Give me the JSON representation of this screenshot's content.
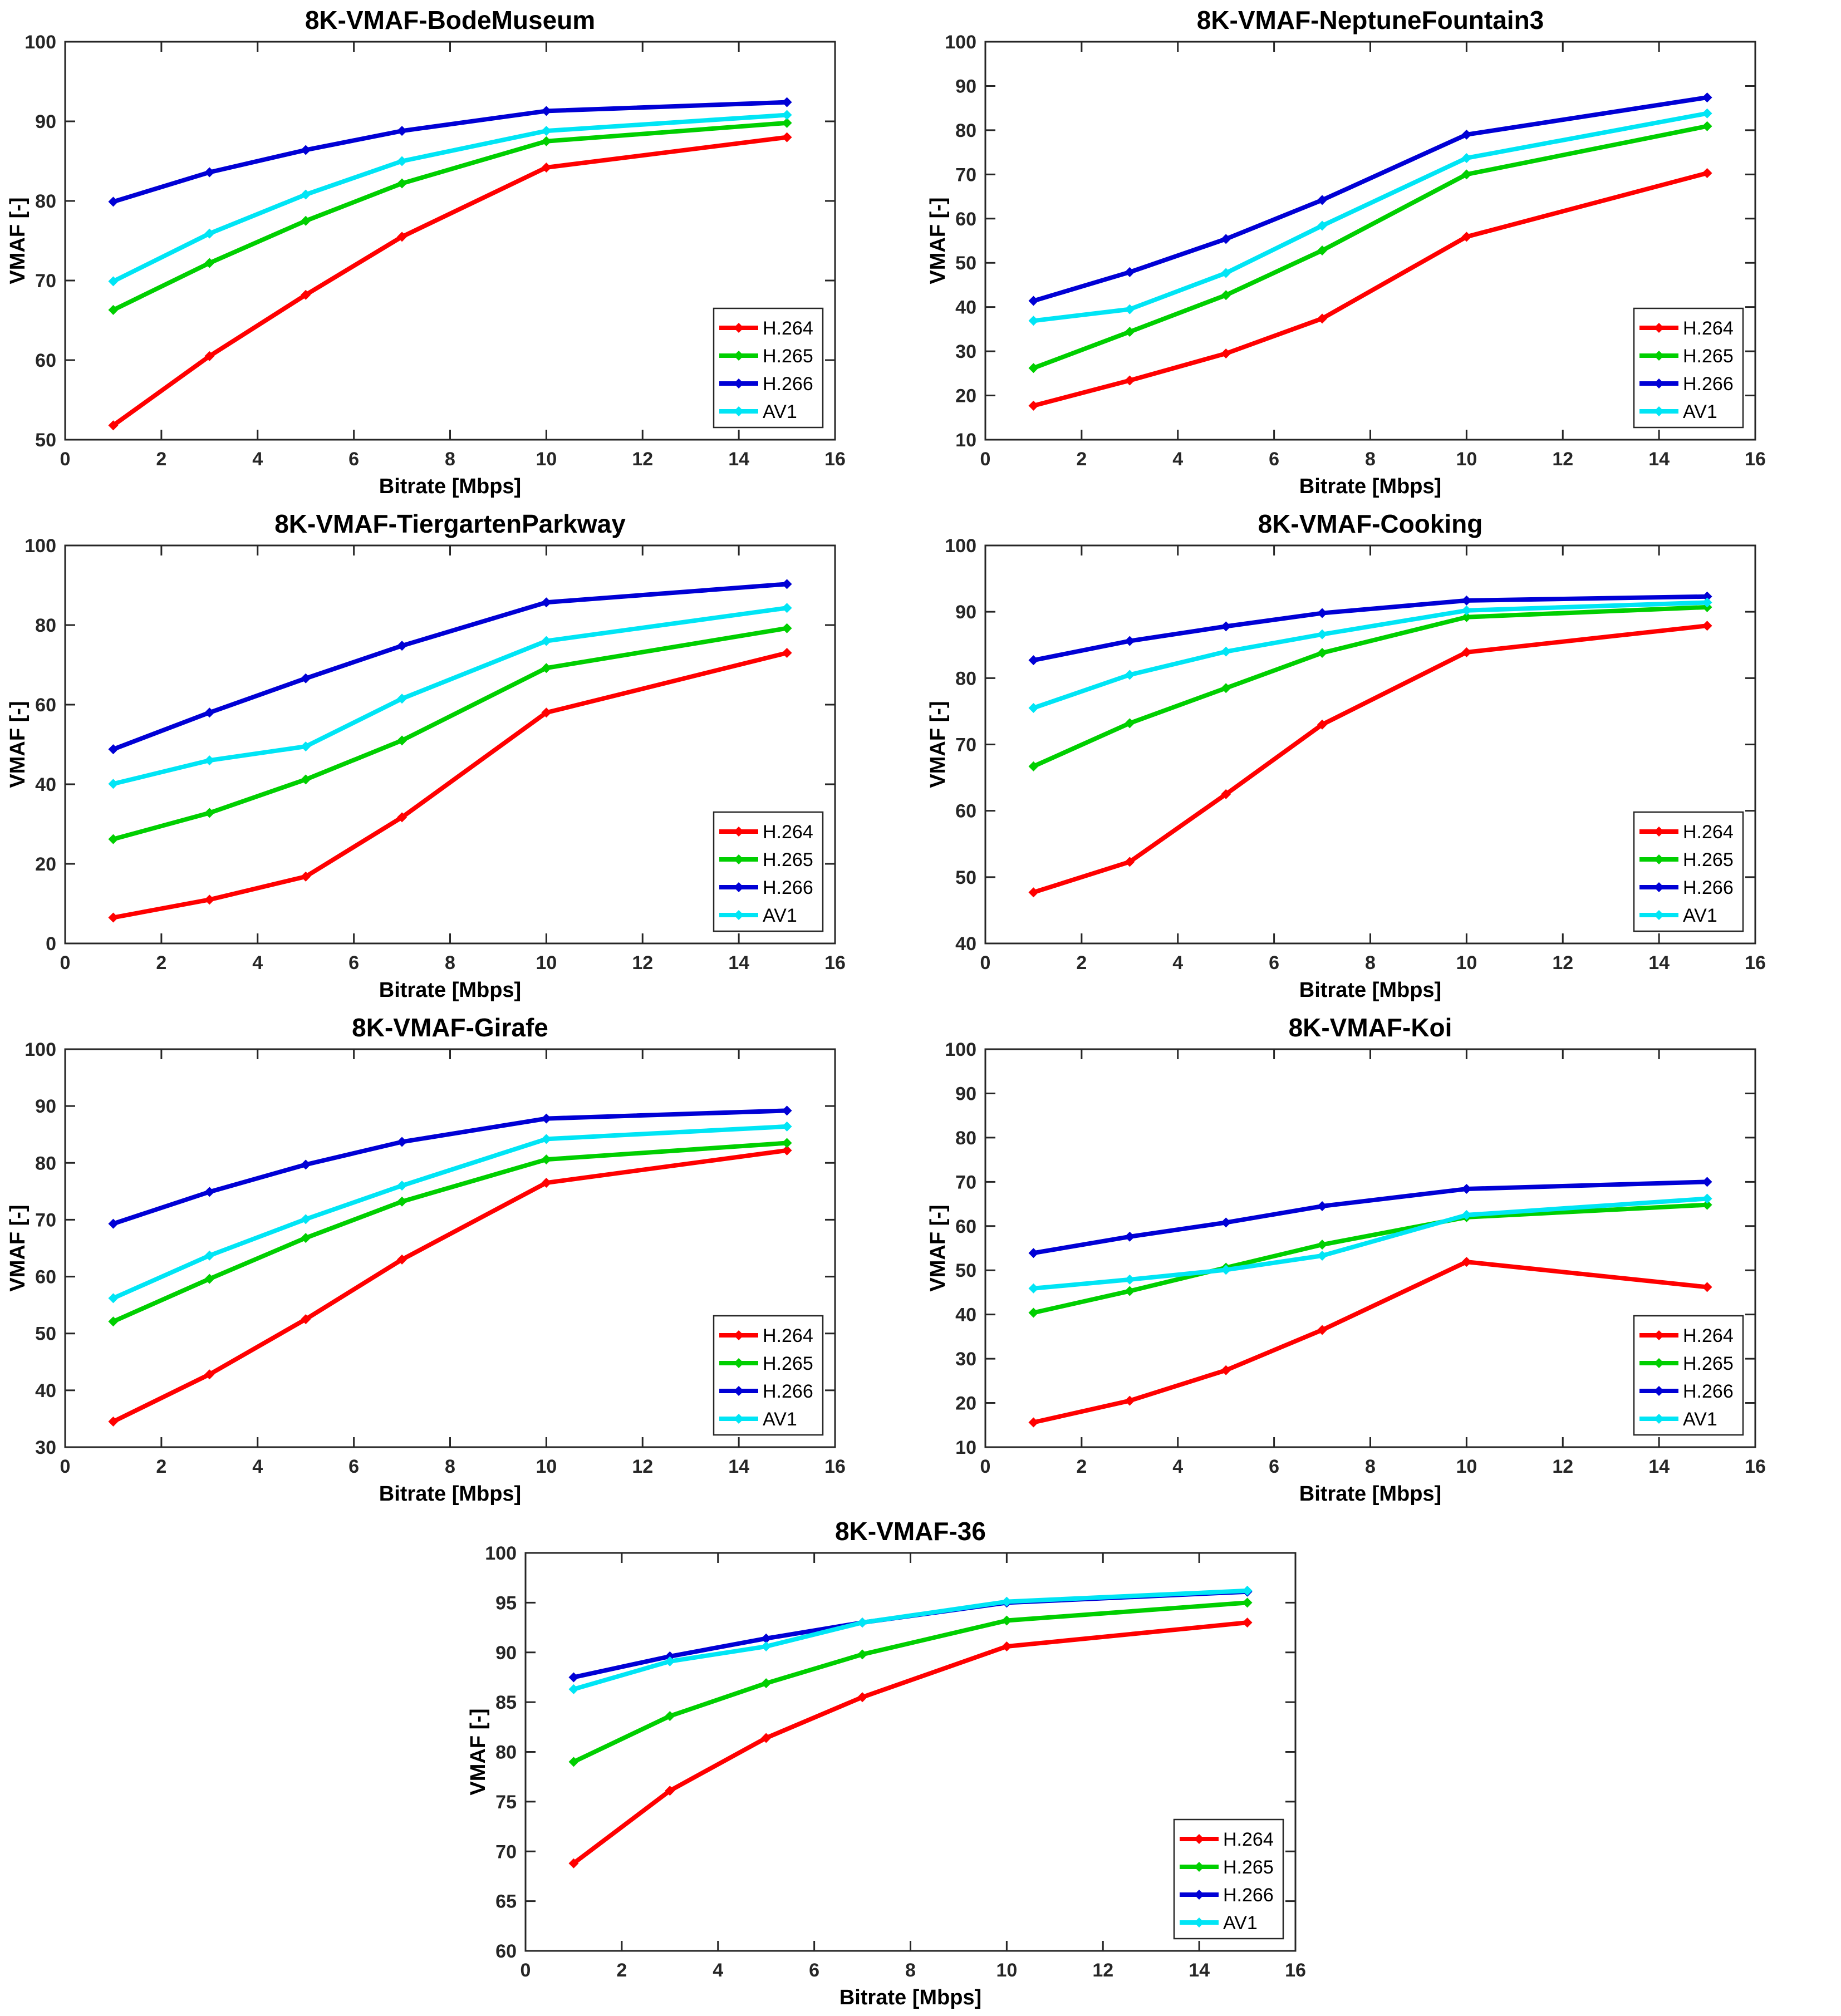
{
  "figure": {
    "background": "#ffffff",
    "series_colors": {
      "H.264": "#ff0000",
      "H.265": "#00cf00",
      "H.266": "#0000d5",
      "AV1": "#00e5f5"
    },
    "axis_text_color": "#262626",
    "label_text_color": "#000000"
  },
  "chart_data": [
    {
      "type": "line",
      "title": "8K-VMAF-BodeMuseum",
      "xlabel": "Bitrate [Mbps]",
      "ylabel": "VMAF [-]",
      "grid": false,
      "legend_position": "southeast",
      "xlim": [
        0,
        16
      ],
      "ylim": [
        50,
        100
      ],
      "xticks": [
        0,
        2,
        4,
        6,
        8,
        10,
        12,
        14,
        16
      ],
      "yticks": [
        50,
        60,
        70,
        80,
        90,
        100
      ],
      "x": [
        1,
        3,
        5,
        7,
        10,
        15
      ],
      "series": [
        {
          "name": "H.264",
          "color": "#ff0000",
          "values": [
            51.8,
            60.5,
            68.2,
            75.5,
            84.2,
            88.0
          ]
        },
        {
          "name": "H.265",
          "color": "#00cf00",
          "values": [
            66.3,
            72.2,
            77.5,
            82.2,
            87.5,
            89.8
          ]
        },
        {
          "name": "H.266",
          "color": "#0000d5",
          "values": [
            79.9,
            83.6,
            86.4,
            88.8,
            91.3,
            92.4
          ]
        },
        {
          "name": "AV1",
          "color": "#00e5f5",
          "values": [
            69.9,
            75.9,
            80.8,
            85.0,
            88.8,
            90.8
          ]
        }
      ]
    },
    {
      "type": "line",
      "title": "8K-VMAF-NeptuneFountain3",
      "xlabel": "Bitrate [Mbps]",
      "ylabel": "VMAF [-]",
      "grid": false,
      "legend_position": "southeast",
      "xlim": [
        0,
        16
      ],
      "ylim": [
        10,
        100
      ],
      "xticks": [
        0,
        2,
        4,
        6,
        8,
        10,
        12,
        14,
        16
      ],
      "yticks": [
        10,
        20,
        30,
        40,
        50,
        60,
        70,
        80,
        90,
        100
      ],
      "x": [
        1,
        3,
        5,
        7,
        10,
        15
      ],
      "series": [
        {
          "name": "H.264",
          "color": "#ff0000",
          "values": [
            17.7,
            23.4,
            29.5,
            37.4,
            55.9,
            70.3
          ]
        },
        {
          "name": "H.265",
          "color": "#00cf00",
          "values": [
            26.2,
            34.4,
            42.7,
            52.8,
            70.0,
            80.9
          ]
        },
        {
          "name": "H.266",
          "color": "#0000d5",
          "values": [
            41.4,
            47.9,
            55.4,
            64.2,
            79.0,
            87.4
          ]
        },
        {
          "name": "AV1",
          "color": "#00e5f5",
          "values": [
            36.9,
            39.5,
            47.7,
            58.4,
            73.7,
            83.8
          ]
        }
      ]
    },
    {
      "type": "line",
      "title": "8K-VMAF-TiergartenParkway",
      "xlabel": "Bitrate [Mbps]",
      "ylabel": "VMAF [-]",
      "grid": false,
      "legend_position": "southeast",
      "xlim": [
        0,
        16
      ],
      "ylim": [
        0,
        100
      ],
      "xticks": [
        0,
        2,
        4,
        6,
        8,
        10,
        12,
        14,
        16
      ],
      "yticks": [
        0,
        20,
        40,
        60,
        80,
        100
      ],
      "x": [
        1,
        3,
        5,
        7,
        10,
        15
      ],
      "series": [
        {
          "name": "H.264",
          "color": "#ff0000",
          "values": [
            6.5,
            11.0,
            16.8,
            31.7,
            58.0,
            73.0
          ]
        },
        {
          "name": "H.265",
          "color": "#00cf00",
          "values": [
            26.2,
            32.8,
            41.2,
            51.0,
            69.2,
            79.2
          ]
        },
        {
          "name": "H.266",
          "color": "#0000d5",
          "values": [
            48.8,
            58.0,
            66.6,
            74.8,
            85.7,
            90.3
          ]
        },
        {
          "name": "AV1",
          "color": "#00e5f5",
          "values": [
            40.1,
            46.0,
            49.5,
            61.5,
            76.0,
            84.3
          ]
        }
      ]
    },
    {
      "type": "line",
      "title": "8K-VMAF-Cooking",
      "xlabel": "Bitrate [Mbps]",
      "ylabel": "VMAF [-]",
      "grid": false,
      "legend_position": "southeast",
      "xlim": [
        0,
        16
      ],
      "ylim": [
        40,
        100
      ],
      "xticks": [
        0,
        2,
        4,
        6,
        8,
        10,
        12,
        14,
        16
      ],
      "yticks": [
        40,
        50,
        60,
        70,
        80,
        90,
        100
      ],
      "x": [
        1,
        3,
        5,
        7,
        10,
        15
      ],
      "series": [
        {
          "name": "H.264",
          "color": "#ff0000",
          "values": [
            47.7,
            52.3,
            62.5,
            73.0,
            83.9,
            87.9
          ]
        },
        {
          "name": "H.265",
          "color": "#00cf00",
          "values": [
            66.7,
            73.2,
            78.5,
            83.8,
            89.2,
            90.7
          ]
        },
        {
          "name": "H.266",
          "color": "#0000d5",
          "values": [
            82.7,
            85.6,
            87.8,
            89.8,
            91.7,
            92.3
          ]
        },
        {
          "name": "AV1",
          "color": "#00e5f5",
          "values": [
            75.5,
            80.5,
            84.0,
            86.6,
            90.2,
            91.4
          ]
        }
      ]
    },
    {
      "type": "line",
      "title": "8K-VMAF-Girafe",
      "xlabel": "Bitrate [Mbps]",
      "ylabel": "VMAF [-]",
      "grid": false,
      "legend_position": "southeast",
      "xlim": [
        0,
        16
      ],
      "ylim": [
        30,
        100
      ],
      "xticks": [
        0,
        2,
        4,
        6,
        8,
        10,
        12,
        14,
        16
      ],
      "yticks": [
        30,
        40,
        50,
        60,
        70,
        80,
        90,
        100
      ],
      "x": [
        1,
        3,
        5,
        7,
        10,
        15
      ],
      "series": [
        {
          "name": "H.264",
          "color": "#ff0000",
          "values": [
            34.5,
            42.8,
            52.5,
            63.0,
            76.5,
            82.2
          ]
        },
        {
          "name": "H.265",
          "color": "#00cf00",
          "values": [
            52.1,
            59.6,
            66.8,
            73.2,
            80.6,
            83.5
          ]
        },
        {
          "name": "H.266",
          "color": "#0000d5",
          "values": [
            69.3,
            74.9,
            79.7,
            83.7,
            87.8,
            89.2
          ]
        },
        {
          "name": "AV1",
          "color": "#00e5f5",
          "values": [
            56.2,
            63.7,
            70.1,
            76.0,
            84.2,
            86.4
          ]
        }
      ]
    },
    {
      "type": "line",
      "title": "8K-VMAF-Koi",
      "xlabel": "Bitrate [Mbps]",
      "ylabel": "VMAF [-]",
      "grid": false,
      "legend_position": "southeast",
      "xlim": [
        0,
        16
      ],
      "ylim": [
        10,
        100
      ],
      "xticks": [
        0,
        2,
        4,
        6,
        8,
        10,
        12,
        14,
        16
      ],
      "yticks": [
        10,
        20,
        30,
        40,
        50,
        60,
        70,
        80,
        90,
        100
      ],
      "x": [
        1,
        3,
        5,
        7,
        10,
        15
      ],
      "series": [
        {
          "name": "H.264",
          "color": "#ff0000",
          "values": [
            15.6,
            20.5,
            27.4,
            36.5,
            51.9,
            46.2
          ]
        },
        {
          "name": "H.265",
          "color": "#00cf00",
          "values": [
            40.4,
            45.3,
            50.6,
            55.8,
            62.0,
            64.8
          ]
        },
        {
          "name": "H.266",
          "color": "#0000d5",
          "values": [
            53.9,
            57.6,
            60.8,
            64.5,
            68.4,
            70.0
          ]
        },
        {
          "name": "AV1",
          "color": "#00e5f5",
          "values": [
            45.9,
            47.9,
            50.1,
            53.3,
            62.5,
            66.2
          ]
        }
      ]
    },
    {
      "type": "line",
      "title": "8K-VMAF-36",
      "xlabel": "Bitrate [Mbps]",
      "ylabel": "VMAF [-]",
      "grid": false,
      "legend_position": "southeast",
      "xlim": [
        0,
        16
      ],
      "ylim": [
        60,
        100
      ],
      "xticks": [
        0,
        2,
        4,
        6,
        8,
        10,
        12,
        14,
        16
      ],
      "yticks": [
        60,
        65,
        70,
        75,
        80,
        85,
        90,
        95,
        100
      ],
      "x": [
        1,
        3,
        5,
        7,
        10,
        15
      ],
      "series": [
        {
          "name": "H.264",
          "color": "#ff0000",
          "values": [
            68.8,
            76.1,
            81.4,
            85.5,
            90.6,
            93.0
          ]
        },
        {
          "name": "H.265",
          "color": "#00cf00",
          "values": [
            79.0,
            83.6,
            86.9,
            89.8,
            93.2,
            95.0
          ]
        },
        {
          "name": "H.266",
          "color": "#0000d5",
          "values": [
            87.5,
            89.6,
            91.4,
            93.0,
            95.0,
            96.1
          ]
        },
        {
          "name": "AV1",
          "color": "#00e5f5",
          "values": [
            86.3,
            89.1,
            90.6,
            93.0,
            95.1,
            96.2
          ]
        }
      ]
    }
  ]
}
